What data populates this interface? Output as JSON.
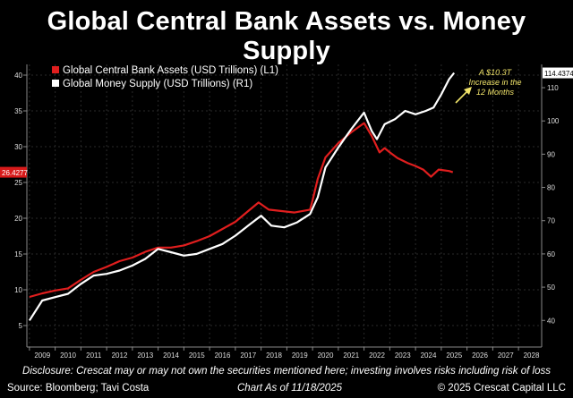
{
  "chart_data": {
    "type": "line",
    "title": "Global Central Bank Assets vs. Money Supply",
    "xlim": [
      2008.9,
      2028.9
    ],
    "x_ticks": [
      "2009",
      "2010",
      "2011",
      "2012",
      "2013",
      "2014",
      "2015",
      "2016",
      "2017",
      "2018",
      "2019",
      "2020",
      "2021",
      "2022",
      "2023",
      "2024",
      "2025",
      "2026",
      "2027",
      "2028"
    ],
    "y_left": {
      "ticks": [
        "5",
        "10",
        "15",
        "20",
        "25",
        "30",
        "35",
        "40"
      ],
      "ylim": [
        2,
        41.5
      ]
    },
    "y_right": {
      "ticks": [
        "40",
        "50",
        "60",
        "70",
        "80",
        "90",
        "100",
        "110"
      ],
      "ylim": [
        32,
        117
      ]
    },
    "legend_position": "top-left",
    "series": [
      {
        "name": "Global Central Bank Assets (USD Trillions) (L1)",
        "axis": "left",
        "color": "#e01e1e",
        "points": [
          [
            2009.0,
            9.0
          ],
          [
            2009.5,
            9.5
          ],
          [
            2010.0,
            9.9
          ],
          [
            2010.5,
            10.2
          ],
          [
            2011.0,
            11.4
          ],
          [
            2011.5,
            12.5
          ],
          [
            2012.0,
            13.2
          ],
          [
            2012.5,
            14.0
          ],
          [
            2013.0,
            14.5
          ],
          [
            2013.5,
            15.3
          ],
          [
            2014.0,
            15.9
          ],
          [
            2014.5,
            15.9
          ],
          [
            2015.0,
            16.2
          ],
          [
            2015.5,
            16.8
          ],
          [
            2016.0,
            17.5
          ],
          [
            2016.5,
            18.5
          ],
          [
            2017.0,
            19.5
          ],
          [
            2017.5,
            21.0
          ],
          [
            2017.9,
            22.2
          ],
          [
            2018.3,
            21.2
          ],
          [
            2018.8,
            21.0
          ],
          [
            2019.3,
            20.8
          ],
          [
            2019.9,
            21.2
          ],
          [
            2020.0,
            22.5
          ],
          [
            2020.2,
            25.5
          ],
          [
            2020.5,
            28.5
          ],
          [
            2021.0,
            30.5
          ],
          [
            2021.5,
            32.0
          ],
          [
            2022.0,
            33.3
          ],
          [
            2022.3,
            31.5
          ],
          [
            2022.6,
            29.2
          ],
          [
            2022.8,
            29.8
          ],
          [
            2023.0,
            29.2
          ],
          [
            2023.3,
            28.4
          ],
          [
            2023.7,
            27.7
          ],
          [
            2024.0,
            27.3
          ],
          [
            2024.3,
            26.8
          ],
          [
            2024.6,
            25.8
          ],
          [
            2024.9,
            26.8
          ],
          [
            2025.3,
            26.6
          ],
          [
            2025.45,
            26.43
          ]
        ]
      },
      {
        "name": "Global Money Supply (USD Trillions) (R1)",
        "axis": "right",
        "color": "#ffffff",
        "points": [
          [
            2009.0,
            40.0
          ],
          [
            2009.5,
            46.0
          ],
          [
            2010.0,
            47.0
          ],
          [
            2010.5,
            48.0
          ],
          [
            2011.0,
            51.0
          ],
          [
            2011.5,
            53.5
          ],
          [
            2012.0,
            54.0
          ],
          [
            2012.5,
            55.0
          ],
          [
            2013.0,
            56.5
          ],
          [
            2013.5,
            58.5
          ],
          [
            2014.0,
            61.5
          ],
          [
            2014.5,
            60.5
          ],
          [
            2015.0,
            59.5
          ],
          [
            2015.5,
            60.0
          ],
          [
            2016.0,
            61.5
          ],
          [
            2016.5,
            63.0
          ],
          [
            2017.0,
            65.5
          ],
          [
            2017.5,
            68.5
          ],
          [
            2018.0,
            71.5
          ],
          [
            2018.4,
            68.5
          ],
          [
            2018.9,
            68.0
          ],
          [
            2019.4,
            69.5
          ],
          [
            2019.9,
            72.0
          ],
          [
            2020.2,
            77.0
          ],
          [
            2020.5,
            86.0
          ],
          [
            2021.0,
            92.0
          ],
          [
            2021.5,
            97.5
          ],
          [
            2022.0,
            102.5
          ],
          [
            2022.3,
            97.0
          ],
          [
            2022.5,
            94.5
          ],
          [
            2022.8,
            99.0
          ],
          [
            2023.2,
            100.5
          ],
          [
            2023.6,
            103.0
          ],
          [
            2024.0,
            102.0
          ],
          [
            2024.4,
            103.0
          ],
          [
            2024.7,
            104.0
          ],
          [
            2025.0,
            108.0
          ],
          [
            2025.3,
            112.5
          ],
          [
            2025.5,
            114.44
          ]
        ]
      }
    ],
    "end_labels": {
      "left_value": "26.4277",
      "right_value": "114.4374"
    },
    "annotation": "A $10.3T Increase in the 12 Months"
  },
  "footer": {
    "disclosure": "Disclosure: Crescat may or may not own the securities mentioned here; investing involves risks including risk of loss",
    "source": "Source: Bloomberg; Tavi Costa",
    "as_of": "Chart As of 11/18/2025",
    "copyright": "© 2025 Crescat Capital LLC"
  }
}
